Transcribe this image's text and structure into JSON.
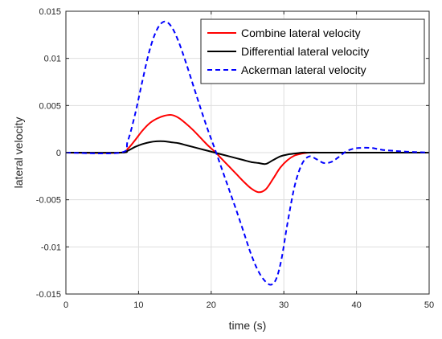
{
  "chart_data": {
    "type": "line",
    "title": "",
    "xlabel": "time (s)",
    "ylabel": "lateral velocity",
    "xlim": [
      0,
      50
    ],
    "ylim": [
      -0.015,
      0.015
    ],
    "xticks": [
      0,
      10,
      20,
      30,
      40,
      50
    ],
    "yticks": [
      0.015,
      0.01,
      0.005,
      0,
      -0.005,
      -0.01,
      -0.015
    ],
    "xtick_labels": [
      "0",
      "10",
      "20",
      "30",
      "40",
      "50"
    ],
    "ytick_labels": [
      "0.015",
      "0.01",
      "0.005",
      "0",
      "-0.005",
      "-0.01",
      "-0.015"
    ],
    "grid": true,
    "legend_position": "top-right",
    "series": [
      {
        "name": "Combine lateral velocity",
        "color": "#ff0000",
        "dash": "solid",
        "x": [
          0,
          7.5,
          8.5,
          9.5,
          10.5,
          11.5,
          12.5,
          13.5,
          14.5,
          15.5,
          16.5,
          17.5,
          18.5,
          19.5,
          20.5,
          21.5,
          22.5,
          23.5,
          24.5,
          25.5,
          26.5,
          27.5,
          28.5,
          29.5,
          30.5,
          31.5,
          32.5,
          33.5,
          35,
          40,
          50
        ],
        "y": [
          0,
          0,
          0.0004,
          0.0013,
          0.0023,
          0.0031,
          0.0036,
          0.0039,
          0.004,
          0.0037,
          0.0031,
          0.0024,
          0.0016,
          0.0008,
          0.0001,
          -0.0007,
          -0.0015,
          -0.0023,
          -0.0031,
          -0.0038,
          -0.0042,
          -0.0039,
          -0.0028,
          -0.0016,
          -0.0008,
          -0.0003,
          -0.0001,
          0,
          0,
          0,
          0
        ]
      },
      {
        "name": "Differential lateral velocity",
        "color": "#000000",
        "dash": "solid",
        "x": [
          0,
          7.5,
          8.5,
          9.5,
          10.5,
          11.5,
          12.5,
          13.5,
          14.5,
          15.5,
          16.5,
          17.5,
          18.5,
          19.5,
          20.5,
          21.5,
          22.5,
          23.5,
          24.5,
          25.5,
          26.5,
          27.5,
          28.5,
          29.5,
          30.5,
          31.5,
          32.5,
          33.5,
          35,
          40,
          50
        ],
        "y": [
          0,
          0,
          0.0002,
          0.0006,
          0.0009,
          0.0011,
          0.0012,
          0.0012,
          0.0011,
          0.001,
          0.0008,
          0.0006,
          0.0004,
          0.0002,
          0,
          -0.0002,
          -0.0004,
          -0.0006,
          -0.0008,
          -0.001,
          -0.0011,
          -0.0012,
          -0.0008,
          -0.0004,
          -0.0002,
          -0.0001,
          0,
          0,
          0,
          0,
          0
        ]
      },
      {
        "name": "Ackerman lateral velocity",
        "color": "#0000ff",
        "dash": "dashed",
        "x": [
          0,
          7.5,
          8.5,
          9.5,
          10.5,
          11.5,
          12.5,
          13.5,
          14.5,
          15.5,
          16.5,
          17.5,
          18.5,
          19.5,
          20.5,
          21.5,
          22.5,
          23.5,
          24.5,
          25.5,
          26.5,
          27.5,
          28.3,
          29,
          29.7,
          30.5,
          31.5,
          32.5,
          33.5,
          34.5,
          35.5,
          36.5,
          37.5,
          38.5,
          39.5,
          40.5,
          42,
          43.5,
          45,
          47,
          50
        ],
        "y": [
          0,
          0,
          0.0012,
          0.004,
          0.0075,
          0.0108,
          0.013,
          0.0139,
          0.0134,
          0.0118,
          0.0096,
          0.0072,
          0.0048,
          0.0025,
          0.0004,
          -0.0018,
          -0.004,
          -0.0062,
          -0.0085,
          -0.0108,
          -0.0126,
          -0.0137,
          -0.014,
          -0.0133,
          -0.0112,
          -0.0075,
          -0.0035,
          -0.0012,
          -0.0004,
          -0.0007,
          -0.0011,
          -0.001,
          -0.0005,
          0.0001,
          0.0004,
          0.0005,
          0.0005,
          0.0003,
          0.0002,
          0.0001,
          0
        ]
      }
    ]
  }
}
